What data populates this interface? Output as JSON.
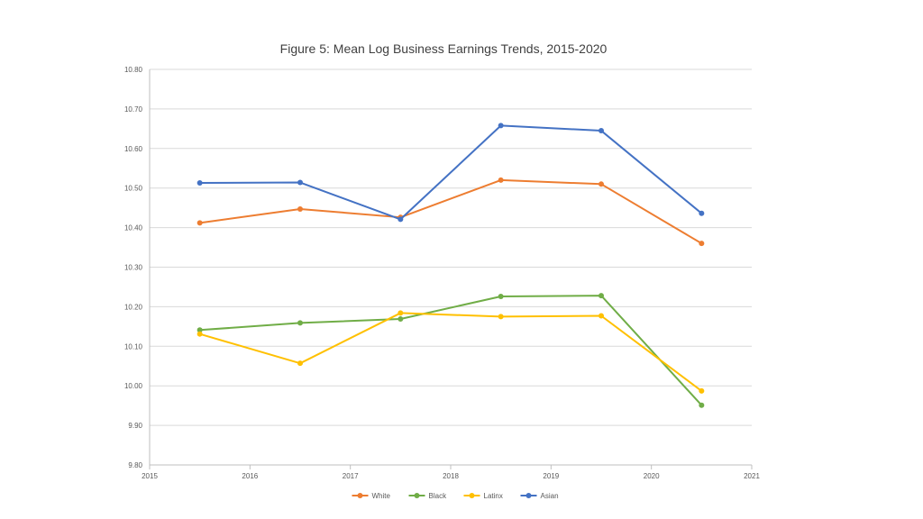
{
  "chart_data": {
    "type": "line",
    "title": "Figure 5: Mean Log Business Earnings Trends, 2015-2020",
    "xlabel": "",
    "ylabel": "",
    "xlim": [
      2015,
      2021
    ],
    "ylim": [
      9.8,
      10.8
    ],
    "x_ticks": [
      "2015",
      "2016",
      "2017",
      "2018",
      "2019",
      "2020",
      "2021"
    ],
    "y_ticks": [
      "9.80",
      "9.90",
      "10.00",
      "10.10",
      "10.20",
      "10.30",
      "10.40",
      "10.50",
      "10.60",
      "10.70",
      "10.80"
    ],
    "x": [
      2015.5,
      2016.5,
      2017.5,
      2018.5,
      2019.5,
      2020.5
    ],
    "grid": true,
    "legend_position": "bottom",
    "series": [
      {
        "name": "White",
        "color": "#ED7D31",
        "values": [
          10.412,
          10.447,
          10.426,
          10.52,
          10.51,
          10.36
        ]
      },
      {
        "name": "Black",
        "color": "#70AD47",
        "values": [
          10.141,
          10.159,
          10.169,
          10.226,
          10.228,
          9.951
        ]
      },
      {
        "name": "Latinx",
        "color": "#FFC000",
        "values": [
          10.131,
          10.057,
          10.184,
          10.175,
          10.177,
          9.987
        ]
      },
      {
        "name": "Asian",
        "color": "#4472C4",
        "values": [
          10.513,
          10.514,
          10.421,
          10.658,
          10.645,
          10.436
        ]
      }
    ]
  }
}
